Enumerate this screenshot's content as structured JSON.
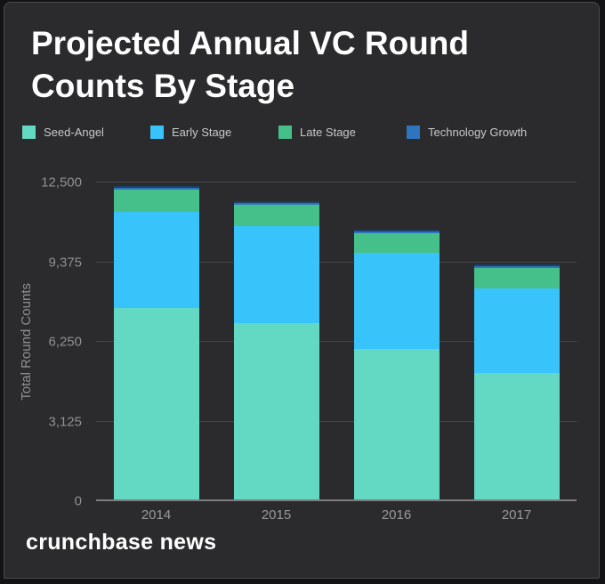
{
  "title": "Projected Annual VC Round Counts By Stage",
  "brand": "crunchbase news",
  "colors": {
    "card_background": "#2B2B2D",
    "title_text": "#FFFFFF",
    "legend_text": "#C7C8CA",
    "axis_text": "#8F9092",
    "gridline": "#454549",
    "baseline": "#7C7D7F",
    "seed_angel": "#63D8C2",
    "early_stage": "#38C4FA",
    "late_stage": "#45C08B",
    "technology_growth": "#2E74BE",
    "technology_growth_top_edge": "#1C3F66"
  },
  "chart_data": {
    "type": "bar",
    "stacked": true,
    "title": "Projected Annual VC Round Counts By Stage",
    "xlabel": "",
    "ylabel": "Total Round Counts",
    "categories": [
      "2014",
      "2015",
      "2016",
      "2017"
    ],
    "series": [
      {
        "name": "Seed-Angel",
        "color": "#63D8C2",
        "values": [
          7580,
          7000,
          5960,
          5020
        ]
      },
      {
        "name": "Early Stage",
        "color": "#38C4FA",
        "values": [
          3770,
          3800,
          3770,
          3340
        ]
      },
      {
        "name": "Late Stage",
        "color": "#45C08B",
        "values": [
          860,
          820,
          780,
          780
        ]
      },
      {
        "name": "Technology Growth",
        "color": "#2E74BE",
        "values": [
          160,
          150,
          150,
          150
        ],
        "top_edge": "#1C3F66"
      }
    ],
    "totals": [
      12370,
      11770,
      10660,
      9290
    ],
    "ylim": [
      0,
      12500
    ],
    "yticks": [
      "0",
      "3,125",
      "6,250",
      "9,375",
      "12,500"
    ],
    "grid": true,
    "legend_position": "top"
  }
}
